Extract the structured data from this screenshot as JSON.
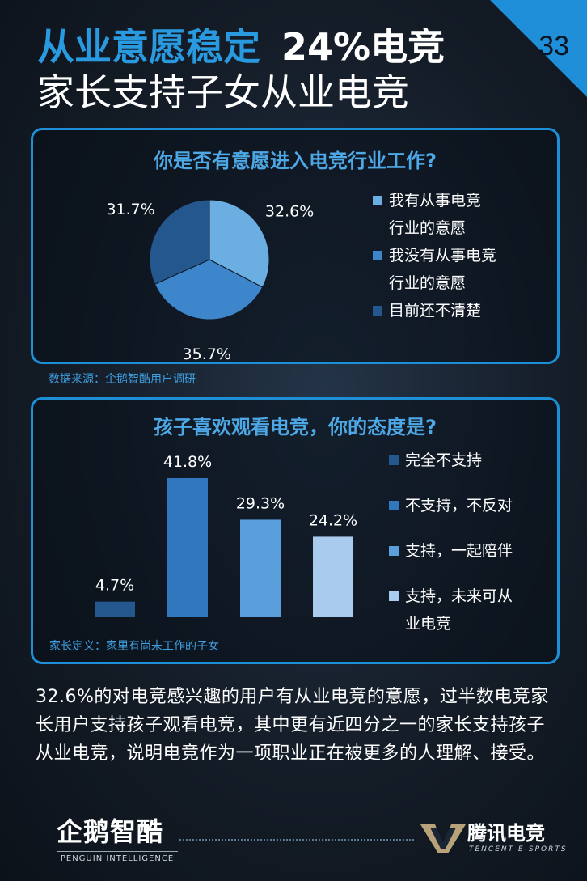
{
  "page": {
    "number": "33"
  },
  "header": {
    "title_highlight": "从业意愿稳定",
    "title_rest": "24%电竞",
    "title_line2": "家长支持子女从业电竞"
  },
  "chart_data": [
    {
      "type": "pie",
      "title": "你是否有意愿进入电竞行业工作?",
      "labels": [
        "我有从事电竞行业的意愿",
        "我没有从事电竞行业的意愿",
        "目前还不清楚"
      ],
      "values": [
        32.6,
        35.7,
        31.7
      ],
      "value_labels": [
        "32.6%",
        "35.7%",
        "31.7%"
      ],
      "colors": [
        "#6aaee2",
        "#3e86cc",
        "#24578d"
      ],
      "legend_lines": [
        [
          "我有从事电竞",
          "行业的意愿"
        ],
        [
          "我没有从事电竞",
          "行业的意愿"
        ],
        [
          "目前还不清楚"
        ]
      ],
      "legend_placement": "right"
    },
    {
      "type": "bar",
      "title": "孩子喜欢观看电竞，你的态度是?",
      "categories": [
        "完全不支持",
        "不支持，不反对",
        "支持，一起陪伴",
        "支持，未来可从业电竞"
      ],
      "values": [
        4.7,
        41.8,
        29.3,
        24.2
      ],
      "value_labels": [
        "4.7%",
        "41.8%",
        "29.3%",
        "24.2%"
      ],
      "colors": [
        "#24578d",
        "#3077be",
        "#5a9edc",
        "#a8cbee"
      ],
      "legend_lines": [
        [
          "完全不支持"
        ],
        [
          "不支持，不反对"
        ],
        [
          "支持，一起陪伴"
        ],
        [
          "支持，未来可从",
          "业电竞"
        ]
      ],
      "legend_placement": "right",
      "grid": false
    }
  ],
  "notes": {
    "source": "数据来源：企鹅智酷用户调研",
    "definition": "家长定义：家里有尚未工作的子女"
  },
  "description": "32.6%的对电竞感兴趣的用户有从业电竞的意愿，过半数电竞家长用户支持孩子观看电竞，其中更有近四分之一的家长支持孩子从业电竞，说明电竞作为一项职业正在被更多的人理解、接受。",
  "footer": {
    "left_logo_text": "企鹅智酷",
    "left_logo_sub": "PENGUIN INTELLIGENCE",
    "right_logo_text": "腾讯电竞",
    "right_logo_sub": "TENCENT E-SPORTS"
  }
}
